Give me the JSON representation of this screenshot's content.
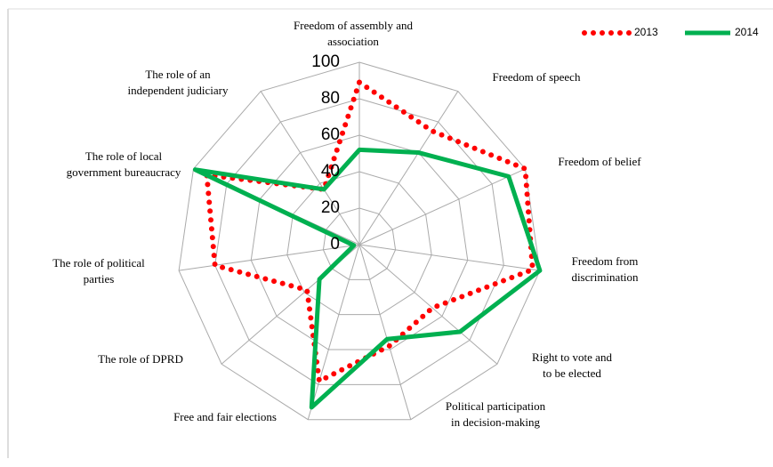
{
  "chart_data": {
    "type": "radar",
    "categories": [
      "Freedom of assembly and\nassociation",
      "Freedom of speech",
      "Freedom of belief",
      "Freedom from\ndiscrimination",
      "Right to vote and\nto be elected",
      "Political participation\nin decision-making",
      "Free and fair elections",
      "The role of DPRD",
      "The role of political\nparties",
      "The role of local\ngovernment bureaucracy",
      "The role of an\nindependent judiciary"
    ],
    "series": [
      {
        "name": "2013",
        "color": "#ff0000",
        "values": [
          89,
          74,
          100,
          96,
          53,
          58,
          78,
          38,
          80,
          92,
          36
        ]
      },
      {
        "name": "2014",
        "color": "#00b050",
        "values": [
          52,
          60,
          90,
          100,
          73,
          54,
          93,
          29,
          3,
          99,
          36
        ]
      }
    ],
    "ylim": [
      0,
      100
    ],
    "yticks": [
      0,
      20,
      40,
      60,
      80,
      100
    ],
    "grid": true,
    "legend": "top-right"
  }
}
